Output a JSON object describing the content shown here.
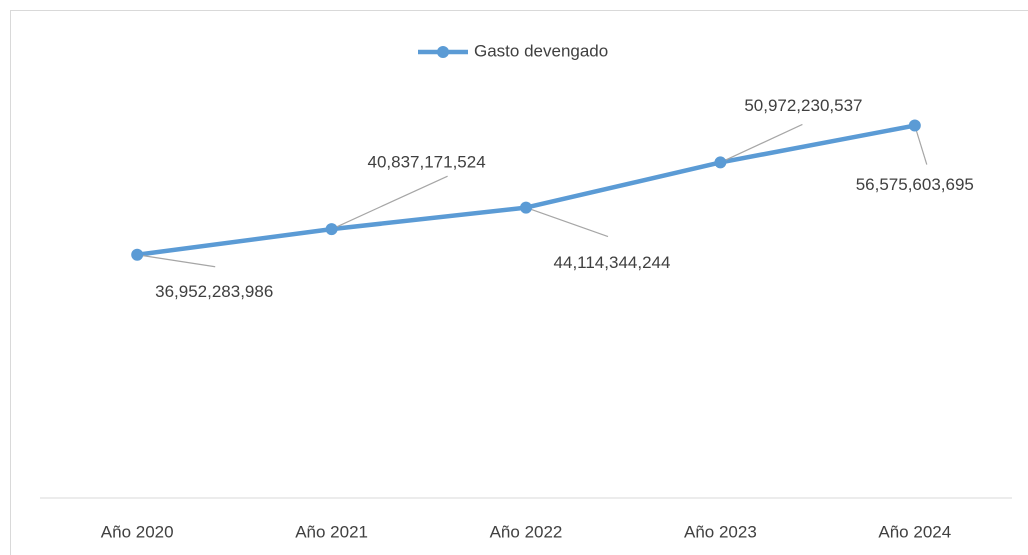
{
  "chart_data": {
    "type": "line",
    "categories": [
      "Año 2020",
      "Año 2021",
      "Año 2022",
      "Año 2023",
      "Año 2024"
    ],
    "series": [
      {
        "name": "Gasto devengado",
        "color": "#5b9bd5",
        "values": [
          36952283986,
          40837171524,
          44114344244,
          50972230537,
          56575603695
        ],
        "value_labels": [
          "36,952,283,986",
          "40,837,171,524",
          "44,114,344,244",
          "50,972,230,537",
          "56,575,603,695"
        ]
      }
    ],
    "ylim": [
      0,
      60000000000
    ],
    "legend": "top"
  }
}
